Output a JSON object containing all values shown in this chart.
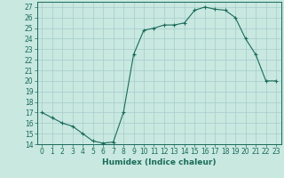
{
  "x": [
    0,
    1,
    2,
    3,
    4,
    5,
    6,
    7,
    8,
    9,
    10,
    11,
    12,
    13,
    14,
    15,
    16,
    17,
    18,
    19,
    20,
    21,
    22,
    23
  ],
  "y": [
    17.0,
    16.5,
    16.0,
    15.7,
    15.0,
    14.3,
    14.1,
    14.2,
    17.0,
    22.5,
    24.8,
    25.0,
    25.3,
    25.3,
    25.5,
    26.7,
    27.0,
    26.8,
    26.7,
    26.0,
    24.0,
    22.5,
    20.0,
    20.0
  ],
  "xlim": [
    -0.5,
    23.5
  ],
  "ylim": [
    14,
    27.5
  ],
  "yticks": [
    14,
    15,
    16,
    17,
    18,
    19,
    20,
    21,
    22,
    23,
    24,
    25,
    26,
    27
  ],
  "xticks": [
    0,
    1,
    2,
    3,
    4,
    5,
    6,
    7,
    8,
    9,
    10,
    11,
    12,
    13,
    14,
    15,
    16,
    17,
    18,
    19,
    20,
    21,
    22,
    23
  ],
  "xlabel": "Humidex (Indice chaleur)",
  "line_color": "#1a6b5a",
  "marker": "+",
  "bg_color": "#c8e8e0",
  "grid_color": "#a8cccc",
  "tick_fontsize": 5.5,
  "label_fontsize": 6.5
}
